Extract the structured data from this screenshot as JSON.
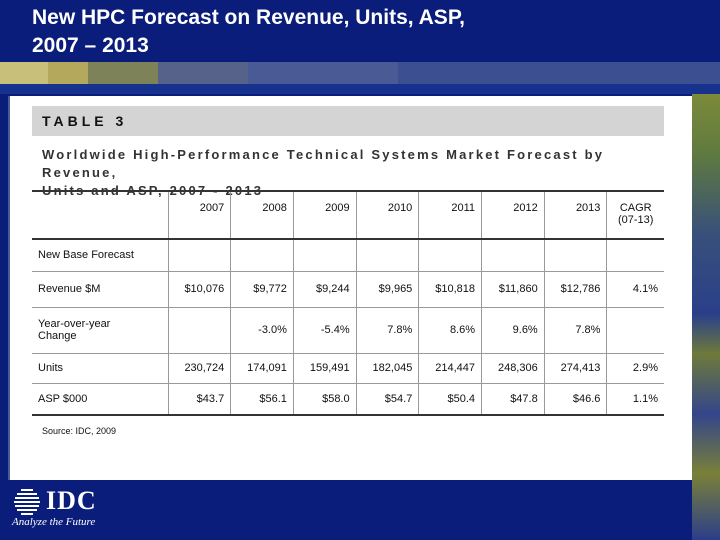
{
  "slide": {
    "title_line1": "New HPC Forecast on Revenue, Units, ASP,",
    "title_line2": "2007 – 2013"
  },
  "table": {
    "label": "TABLE 3",
    "subtitle_line1": "Worldwide High-Performance Technical Systems Market Forecast by Revenue,",
    "subtitle_line2": "Units and ASP, 2007 - 2013",
    "columns": [
      "2007",
      "2008",
      "2009",
      "2010",
      "2011",
      "2012",
      "2013"
    ],
    "cagr_header_line1": "CAGR",
    "cagr_header_line2": "(07-13)",
    "group_label": "New Base Forecast",
    "rows": [
      {
        "label": "Revenue $M",
        "values": [
          "$10,076",
          "$9,772",
          "$9,244",
          "$9,965",
          "$10,818",
          "$11,860",
          "$12,786"
        ],
        "cagr": "4.1%"
      },
      {
        "label_line1": "Year-over-year",
        "label_line2": "Change",
        "values": [
          "",
          "-3.0%",
          "-5.4%",
          "7.8%",
          "8.6%",
          "9.6%",
          "7.8%"
        ],
        "cagr": ""
      },
      {
        "label": "Units",
        "values": [
          "230,724",
          "174,091",
          "159,491",
          "182,045",
          "214,447",
          "248,306",
          "274,413"
        ],
        "cagr": "2.9%"
      },
      {
        "label": "ASP $000",
        "values": [
          "$43.7",
          "$56.1",
          "$58.0",
          "$54.7",
          "$50.4",
          "$47.8",
          "$46.6"
        ],
        "cagr": "1.1%"
      }
    ],
    "source": "Source:  IDC, 2009"
  },
  "branding": {
    "logo_text": "IDC",
    "tagline": "Analyze the Future",
    "logo_icon": "globe-lines-icon"
  },
  "colors": {
    "background": "#0b1d7a",
    "header_gray": "#d4d4d4"
  }
}
